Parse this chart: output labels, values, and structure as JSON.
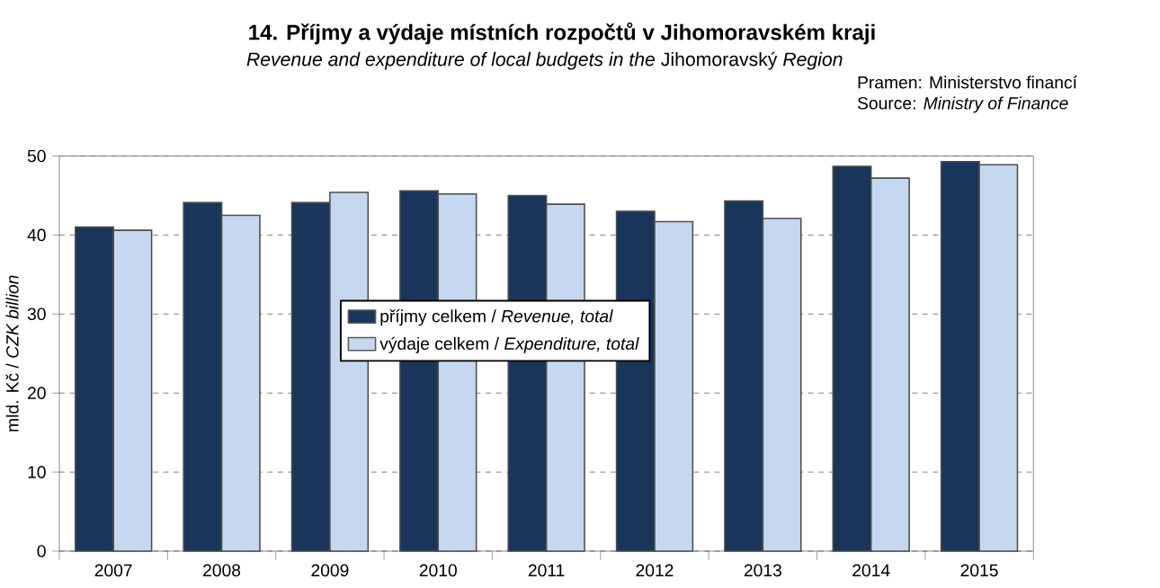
{
  "chart_data": {
    "type": "bar",
    "title": "14. Příjmy a výdaje místních rozpočtů v Jihomoravském kraji",
    "subtitle": "*Revenue and expenditure of local budgets in the* Jihomoravský *Region*",
    "ylabel": "mld. Kč / *CZK billion*",
    "annotations": [
      "Pramen: Ministerstvo financí",
      "Source: *Ministry of Finance*"
    ],
    "categories": [
      "2007",
      "2008",
      "2009",
      "2010",
      "2011",
      "2012",
      "2013",
      "2014",
      "2015"
    ],
    "series": [
      {
        "name": "příjmy celkem / *Revenue, total*",
        "color": "#1a355a",
        "values": [
          41.0,
          44.1,
          44.1,
          45.6,
          45.0,
          43.0,
          44.3,
          48.7,
          49.3
        ]
      },
      {
        "name": "výdaje celkem / *Expenditure, total*",
        "color": "#c6d8ef",
        "values": [
          40.6,
          42.5,
          45.4,
          45.2,
          43.9,
          41.7,
          42.1,
          47.2,
          48.9
        ]
      }
    ],
    "ylim": [
      0,
      50
    ],
    "yticks": [
      0,
      10,
      20,
      30,
      40,
      50
    ],
    "grid": "y",
    "legend": "center"
  }
}
